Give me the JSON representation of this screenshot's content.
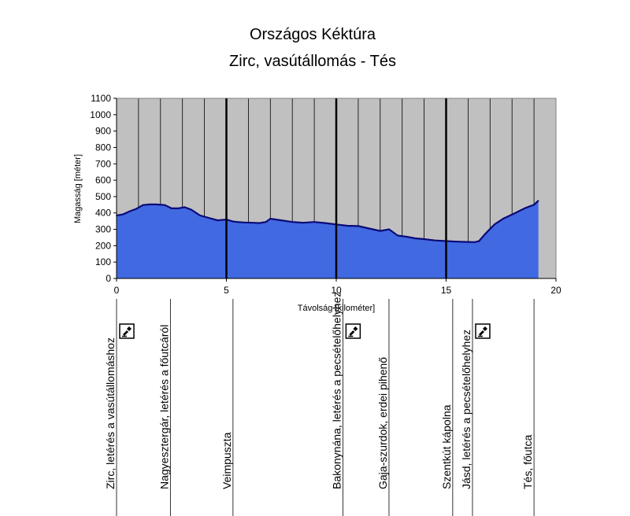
{
  "chart_data": {
    "type": "area",
    "title": "Országos Kéktúra",
    "subtitle": "Zirc, vasútállomás - Tés",
    "xlabel": "Távolság [kilométer]",
    "ylabel": "Magasság [méter]",
    "xlim": [
      0,
      20
    ],
    "ylim": [
      0,
      1100
    ],
    "xticks": [
      0,
      5,
      10,
      15,
      20
    ],
    "yticks": [
      0,
      100,
      200,
      300,
      400,
      500,
      600,
      700,
      800,
      900,
      1000,
      1100
    ],
    "grid": true,
    "colors": {
      "plot_bg": "#c0c0c0",
      "fill": "#4169e1",
      "line": "#0a0a78"
    },
    "series": [
      {
        "x": [
          0,
          0.3,
          0.6,
          0.9,
          1.2,
          1.5,
          1.8,
          2.2,
          2.5,
          2.8,
          3.1,
          3.4,
          3.8,
          4.2,
          4.6,
          5.0,
          5.3,
          5.5,
          5.8,
          6.2,
          6.5,
          6.8,
          7.0,
          7.5,
          8.0,
          8.5,
          9.0,
          9.5,
          10.0,
          10.5,
          11.0,
          11.5,
          12.0,
          12.4,
          12.8,
          13.2,
          13.6,
          14.0,
          14.5,
          15.0,
          15.5,
          16.0,
          16.3,
          16.5,
          16.8,
          17.2,
          17.6,
          18.0,
          18.3,
          18.6,
          19.0,
          19.2
        ],
        "y": [
          385,
          392,
          410,
          425,
          448,
          452,
          452,
          448,
          428,
          428,
          435,
          420,
          385,
          370,
          355,
          360,
          348,
          345,
          342,
          340,
          338,
          345,
          365,
          355,
          345,
          340,
          345,
          338,
          330,
          322,
          320,
          305,
          290,
          300,
          262,
          255,
          245,
          240,
          232,
          228,
          225,
          223,
          222,
          228,
          275,
          330,
          365,
          390,
          410,
          430,
          450,
          475
        ]
      }
    ],
    "waypoints": [
      {
        "x": 0,
        "label": "Zirc, letérés a vasútállomáshoz",
        "stamp": true
      },
      {
        "x": 2.45,
        "label": "Nagyesztergár, letérés a főutcáról",
        "stamp": false
      },
      {
        "x": 5.3,
        "label": "Veimpuszta",
        "stamp": false
      },
      {
        "x": 10.3,
        "label": "Bakonynána, letérés a pecsételőhelyhez",
        "stamp": true
      },
      {
        "x": 12.4,
        "label": "Gaja-szurdok, erdei pihenő",
        "stamp": false
      },
      {
        "x": 15.3,
        "label": "Szentkút kápolna",
        "stamp": false
      },
      {
        "x": 16.2,
        "label": "Jásd, letérés a pecsételőhelyhez",
        "stamp": true
      },
      {
        "x": 19.0,
        "label": "Tés, főutca",
        "stamp": false
      }
    ],
    "section_lines_x": [
      5,
      10,
      15
    ]
  }
}
